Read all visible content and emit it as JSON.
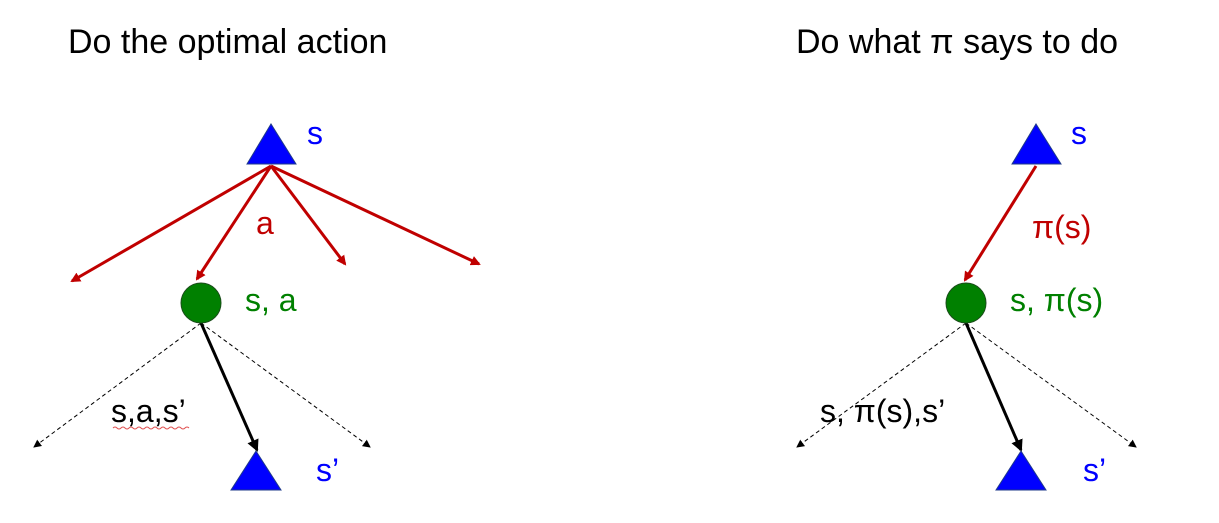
{
  "colors": {
    "state": "#0000ff",
    "qstate": "#008000",
    "action": "#c00000",
    "transition": "#000000"
  },
  "left": {
    "title": "Do the optimal action",
    "state_label": "s",
    "action_label": "a",
    "qstate_label": "s, a",
    "transition_label": "s,a,s’",
    "next_state_label": "s’"
  },
  "right": {
    "title": "Do what π says to do",
    "state_label": "s",
    "action_label": "π(s)",
    "qstate_label": "s, π(s)",
    "transition_label": "s, π(s),s’",
    "next_state_label": "s’"
  }
}
